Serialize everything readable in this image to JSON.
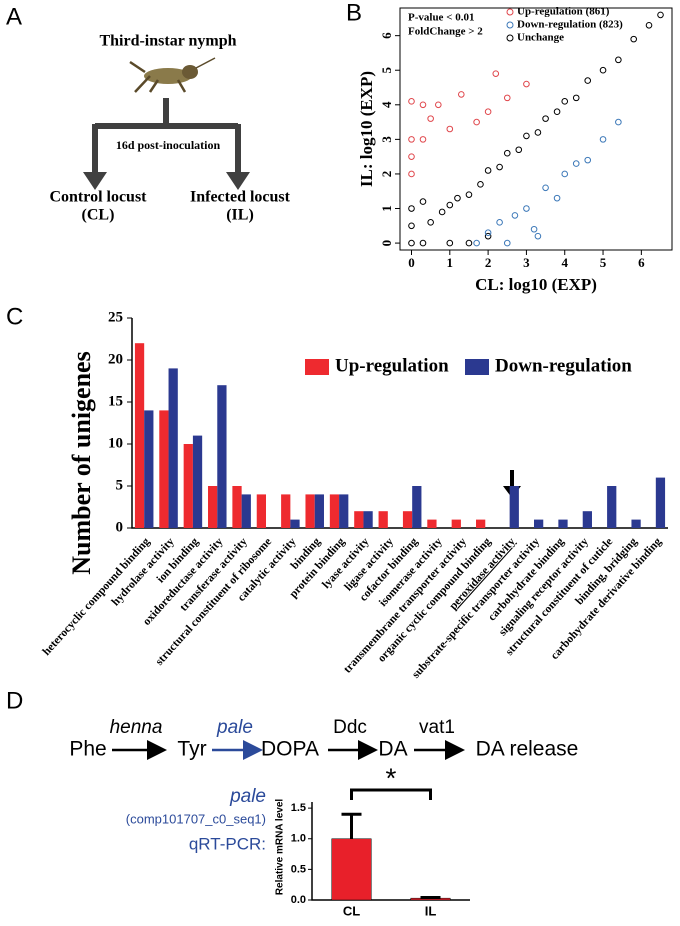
{
  "panel_labels": [
    "A",
    "B",
    "C",
    "D"
  ],
  "panel_a": {
    "title": "Third-instar nymph",
    "treatment": "16d post-inoculation",
    "groups": [
      {
        "name": "Control locust",
        "abbr": "(CL)"
      },
      {
        "name": "Infected locust",
        "abbr": "(IL)"
      }
    ]
  },
  "panel_d": {
    "pathway": {
      "nodes": [
        "Phe",
        "Tyr",
        "DOPA",
        "DA",
        "DA release"
      ],
      "enzymes": [
        "henna",
        "pale",
        "Ddc",
        "vat1"
      ]
    },
    "gene": "pale",
    "gene_id": "(comp101707_c0_seq1)",
    "assay": "qRT-PCR:"
  },
  "chart_data": [
    {
      "type": "scatter",
      "xlabel": "CL: log10 (EXP)",
      "ylabel": "IL: log10 (EXP)",
      "legend_header": [
        "P-value < 0.01",
        "FoldChange > 2"
      ],
      "xlim": [
        -0.3,
        6.8
      ],
      "ylim": [
        -0.2,
        6.8
      ],
      "xticks": [
        0,
        1,
        2,
        3,
        4,
        5,
        6
      ],
      "yticks": [
        0,
        1,
        2,
        3,
        4,
        5,
        6
      ],
      "series": [
        {
          "name": "Up-regulation (861)",
          "color": "#e0474c",
          "x": [
            0,
            0,
            0,
            0.3,
            0.3,
            0.7,
            1,
            1.3,
            1.7,
            2,
            2.5,
            3,
            0,
            0.5,
            2.2
          ],
          "y": [
            2,
            3,
            4.1,
            3,
            4,
            4,
            3.3,
            4.3,
            3.5,
            3.8,
            4.2,
            4.6,
            2.5,
            3.6,
            4.9
          ]
        },
        {
          "name": "Down-regulation (823)",
          "color": "#3c78b8",
          "x": [
            1.7,
            2,
            2.3,
            2.7,
            3,
            3.2,
            3.5,
            3.8,
            4,
            4.3,
            4.6,
            5,
            2.5,
            3.3,
            5.4
          ],
          "y": [
            0,
            0.3,
            0.6,
            0.8,
            1,
            0.4,
            1.6,
            1.3,
            2,
            2.3,
            2.4,
            3,
            0,
            0.2,
            3.5
          ]
        },
        {
          "name": "Unchange",
          "color": "#000000",
          "x": [
            0,
            0,
            0,
            0.3,
            0.3,
            0.5,
            0.8,
            1,
            1.2,
            1.5,
            1.8,
            2,
            2.3,
            2.5,
            2.8,
            3,
            3.3,
            3.5,
            3.8,
            4,
            4.3,
            4.6,
            5,
            5.4,
            5.8,
            6.2,
            6.5,
            1,
            1.5,
            2
          ],
          "y": [
            0,
            0.5,
            1,
            0,
            1.2,
            0.6,
            0.9,
            1.1,
            1.3,
            1.4,
            1.7,
            2.1,
            2.2,
            2.6,
            2.7,
            3.1,
            3.2,
            3.6,
            3.8,
            4.1,
            4.2,
            4.7,
            5,
            5.3,
            5.9,
            6.3,
            6.6,
            0,
            0,
            0.2
          ]
        }
      ]
    },
    {
      "type": "bar",
      "ylabel": "Number of unigenes",
      "categories": [
        "heterocyclic compound binding",
        "hydrolase activity",
        "ion binding",
        "oxidoreductase activity",
        "transferase activity",
        "structural constituent of ribosome",
        "catalytic activity",
        "binding",
        "protein binding",
        "lyase activity",
        "ligase activity",
        "cofactor binding",
        "isomerase activity",
        "transmembrane transporter activity",
        "organic cyclic compound binding",
        "peroxidase activity",
        "substrate-specific transporter activity",
        "carbohydrate binding",
        "signaling receptor activity",
        "structural constituent of cuticle",
        "binding, bridging",
        "carbohydrate derivative binding"
      ],
      "ylim": [
        0,
        25
      ],
      "yticks": [
        0,
        5,
        10,
        15,
        20,
        25
      ],
      "series": [
        {
          "name": "Up-regulation",
          "color": "#ee2a2f",
          "values": [
            22,
            14,
            10,
            5,
            5,
            4,
            4,
            4,
            4,
            2,
            2,
            2,
            1,
            1,
            1,
            0,
            0,
            0,
            0,
            0,
            0,
            0
          ]
        },
        {
          "name": "Down-regulation",
          "color": "#2b3990",
          "values": [
            14,
            19,
            11,
            17,
            4,
            0,
            1,
            4,
            4,
            2,
            0,
            5,
            0,
            0,
            0,
            5,
            1,
            1,
            2,
            5,
            1,
            6
          ]
        }
      ]
    },
    {
      "type": "errorbar",
      "ylabel": "Relative mRNA level",
      "categories": [
        "CL",
        "IL"
      ],
      "values": [
        1.0,
        0.03
      ],
      "errors": [
        0.4,
        0.01
      ],
      "color": "#e8202a",
      "ylim": [
        0,
        1.6
      ],
      "yticks": [
        {
          "value": 0,
          "label": "0.0"
        },
        0.5,
        {
          "value": 1,
          "label": "1.0"
        },
        1.5
      ],
      "annotation": "*"
    }
  ]
}
